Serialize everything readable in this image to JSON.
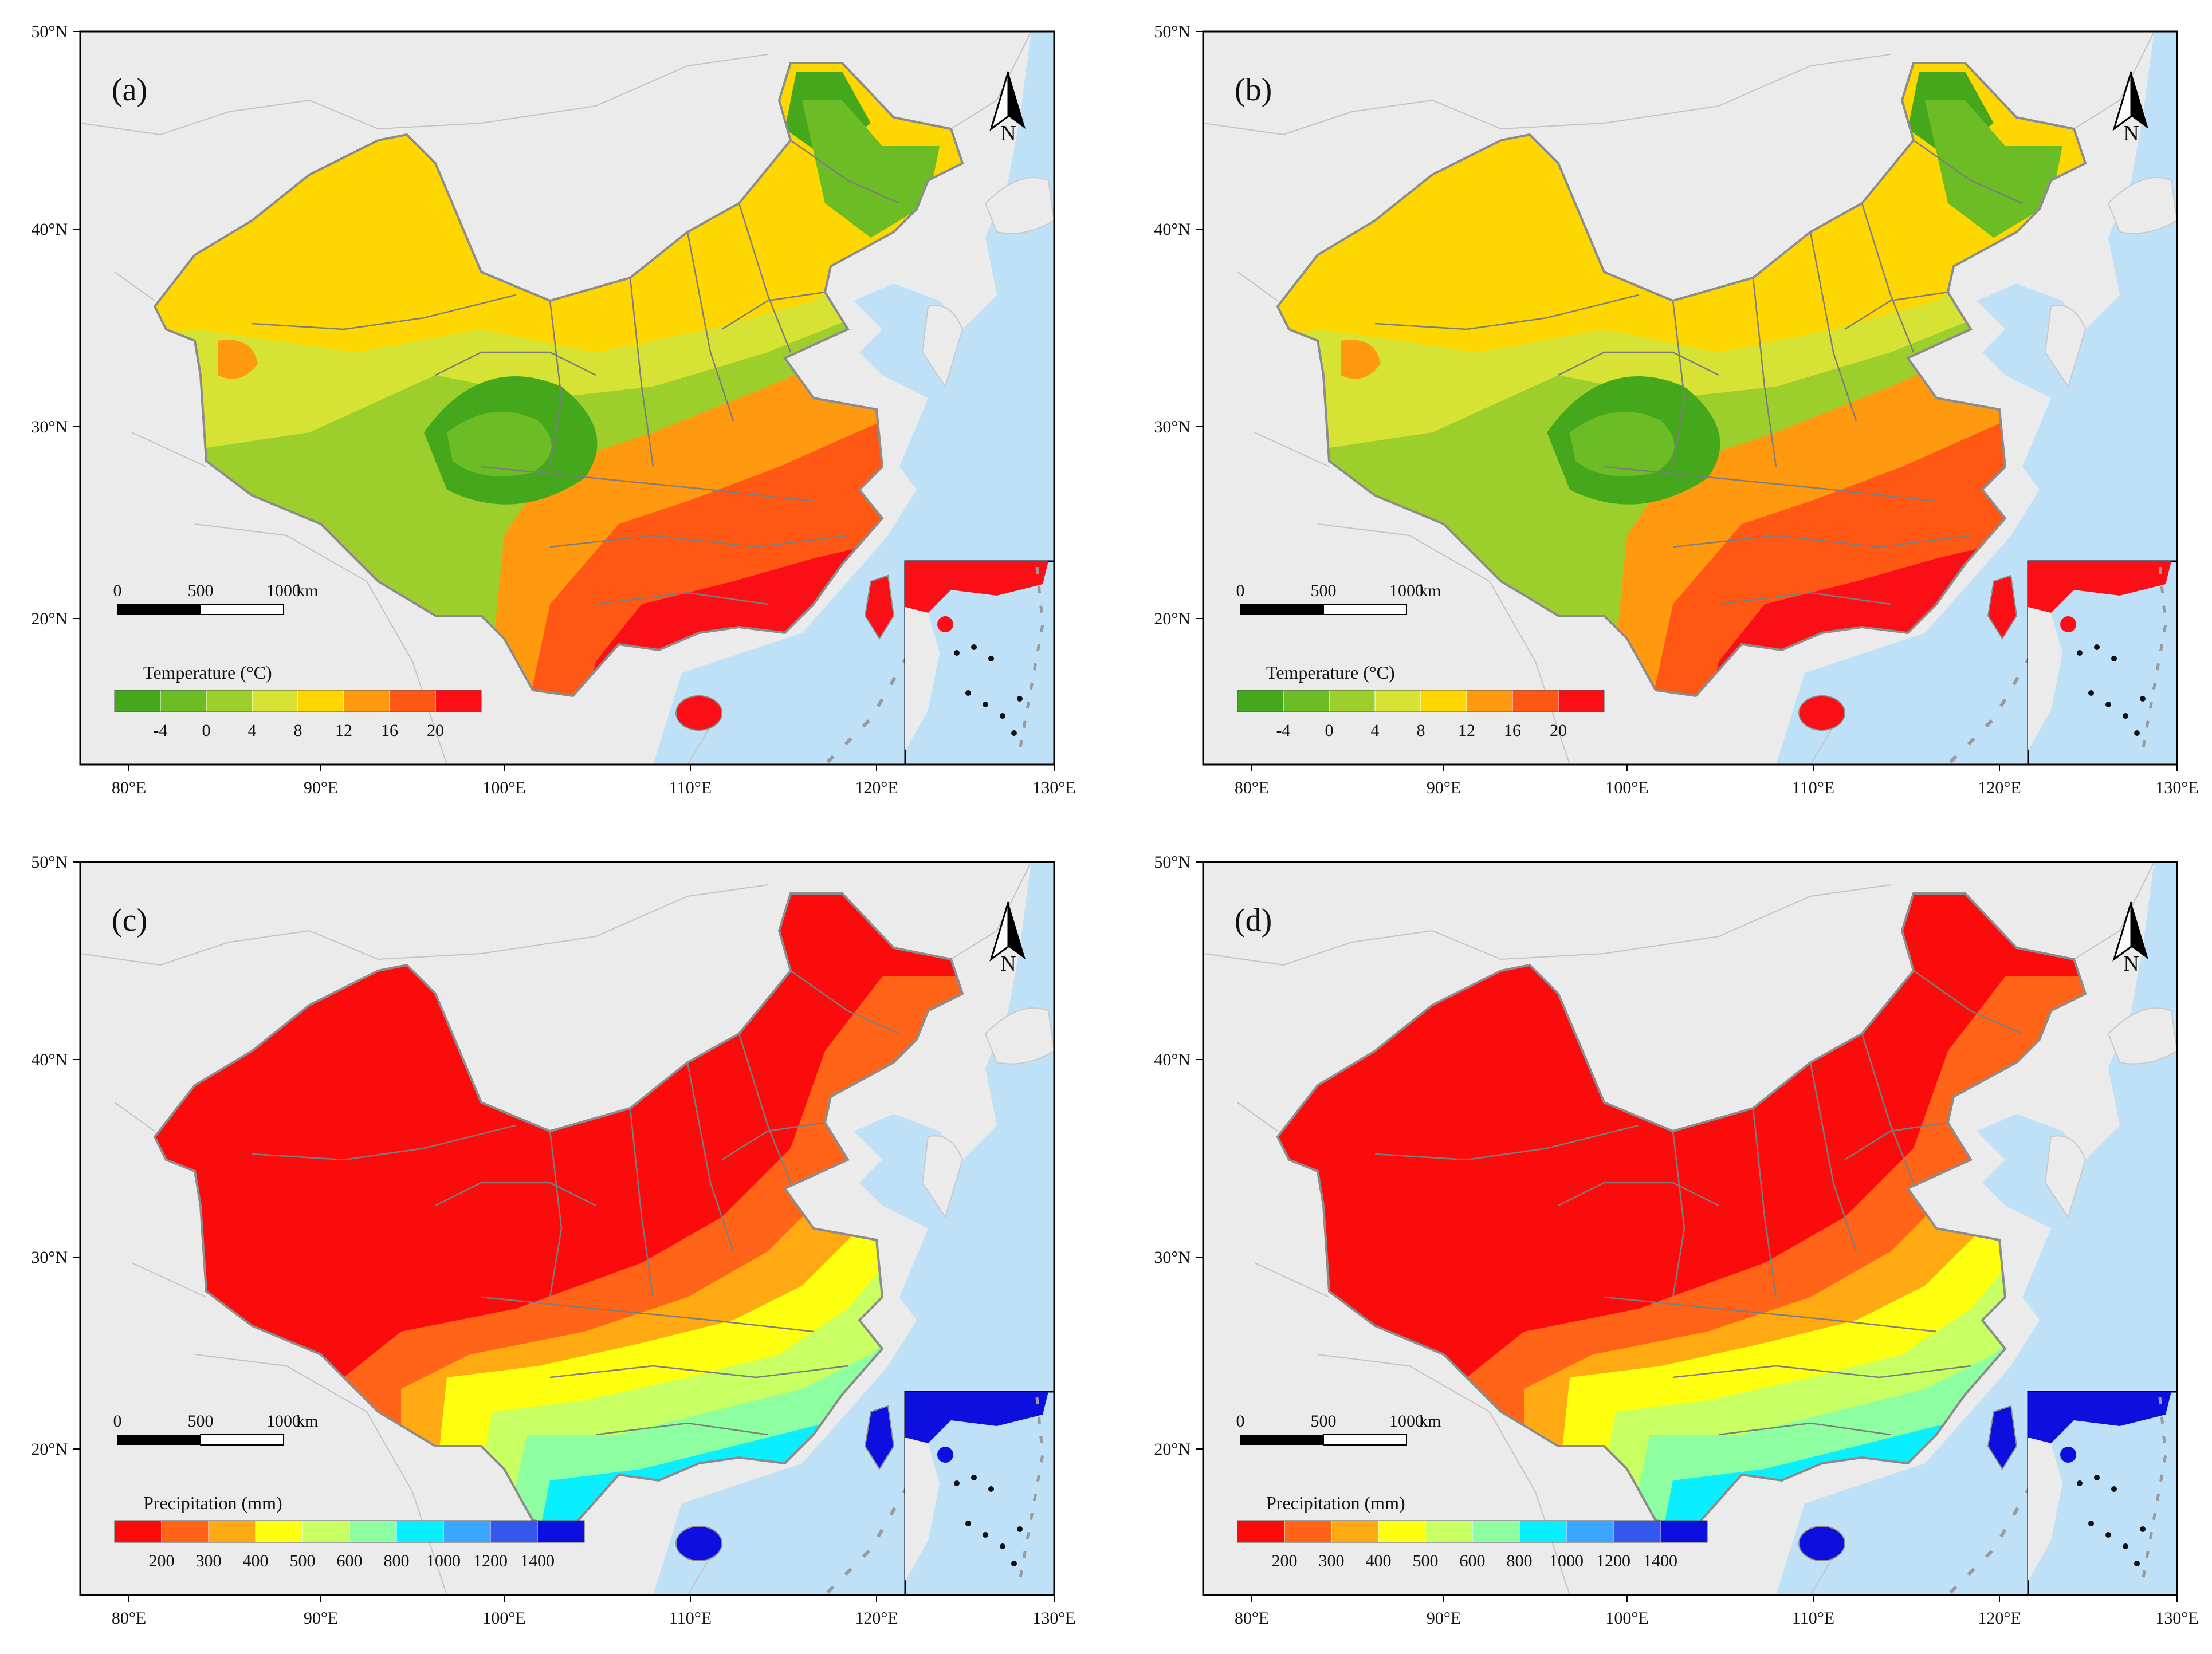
{
  "figure": {
    "panels": [
      {
        "label": "(a)",
        "kind": "temperature",
        "colorbar": {
          "title": "Temperature (°C)",
          "ticks": [
            "-4",
            "0",
            "4",
            "8",
            "12",
            "16",
            "20"
          ],
          "colors": [
            "#45a81c",
            "#6cbd25",
            "#9dcf2c",
            "#d6e335",
            "#ffd700",
            "#ff9a10",
            "#ff5814",
            "#fb0f16"
          ]
        }
      },
      {
        "label": "(b)",
        "kind": "temperature",
        "colorbar": {
          "title": "Temperature (°C)",
          "ticks": [
            "-4",
            "0",
            "4",
            "8",
            "12",
            "16",
            "20"
          ],
          "colors": [
            "#45a81c",
            "#6cbd25",
            "#9dcf2c",
            "#d6e335",
            "#ffd700",
            "#ff9a10",
            "#ff5814",
            "#fb0f16"
          ]
        }
      },
      {
        "label": "(c)",
        "kind": "precipitation",
        "colorbar": {
          "title": "Precipitation (mm)",
          "ticks": [
            "200",
            "300",
            "400",
            "500",
            "600",
            "800",
            "1000",
            "1200",
            "1400"
          ],
          "colors": [
            "#fb0b0b",
            "#ff6419",
            "#ffaa12",
            "#ffff10",
            "#c8ff63",
            "#8effa0",
            "#09efff",
            "#3aa6ff",
            "#3458ee",
            "#0c0fde"
          ]
        }
      },
      {
        "label": "(d)",
        "kind": "precipitation",
        "colorbar": {
          "title": "Precipitation (mm)",
          "ticks": [
            "200",
            "300",
            "400",
            "500",
            "600",
            "800",
            "1000",
            "1200",
            "1400"
          ],
          "colors": [
            "#fb0b0b",
            "#ff6419",
            "#ffaa12",
            "#ffff10",
            "#c8ff63",
            "#8effa0",
            "#09efff",
            "#3aa6ff",
            "#3458ee",
            "#0c0fde"
          ]
        }
      }
    ],
    "lat_labels": [
      "50°N",
      "40°N",
      "30°N",
      "20°N"
    ],
    "lon_labels": [
      "80°E",
      "90°E",
      "100°E",
      "110°E",
      "120°E",
      "130°E"
    ],
    "scale_bar": {
      "ticks": [
        "0",
        "500",
        "1000"
      ],
      "unit": "km"
    },
    "north_arrow": "N",
    "colors": {
      "ocean": "#bfe1f7",
      "land": "#ebebeb",
      "border": "#8c8c8c",
      "frame": "#000000"
    }
  }
}
